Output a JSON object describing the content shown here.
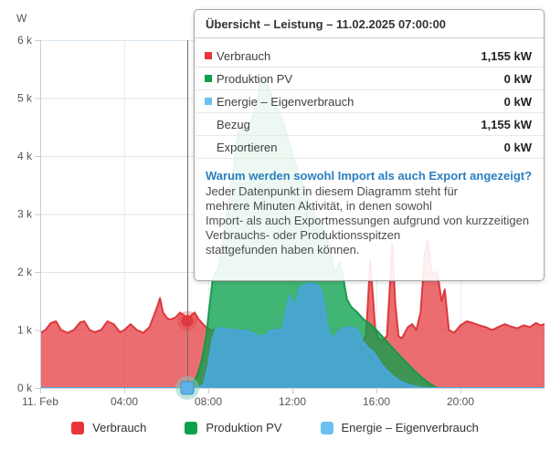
{
  "chart_data": {
    "type": "area",
    "title": "",
    "xlabel": "",
    "ylabel": "W",
    "y_axis": {
      "unit_label": "W",
      "min": 0,
      "max": 6000,
      "tick_step": 1000,
      "tick_labels": [
        "0 k",
        "1 k",
        "2 k",
        "3 k",
        "4 k",
        "5 k",
        "6 k"
      ]
    },
    "x_axis": {
      "ticks": [
        {
          "t": 0,
          "label": "11. Feb"
        },
        {
          "t": 4,
          "label": "04:00"
        },
        {
          "t": 8,
          "label": "08:00"
        },
        {
          "t": 12,
          "label": "12:00"
        },
        {
          "t": 16,
          "label": "16:00"
        },
        {
          "t": 20,
          "label": "20:00"
        }
      ]
    },
    "grid": true,
    "legend_position": "bottom",
    "series": [
      {
        "name": "Verbrauch",
        "color": "#e8353a",
        "stroke": "rgba(218,44,49,0.9)",
        "fill": "rgba(229,53,57,0.72)",
        "points": [
          [
            0,
            950
          ],
          [
            0.25,
            1000
          ],
          [
            0.5,
            1120
          ],
          [
            0.75,
            1150
          ],
          [
            1,
            1000
          ],
          [
            1.3,
            950
          ],
          [
            1.6,
            1000
          ],
          [
            1.9,
            1130
          ],
          [
            2.1,
            1150
          ],
          [
            2.35,
            1000
          ],
          [
            2.6,
            960
          ],
          [
            2.9,
            1000
          ],
          [
            3.2,
            1150
          ],
          [
            3.5,
            1100
          ],
          [
            3.8,
            960
          ],
          [
            4,
            1000
          ],
          [
            4.3,
            1100
          ],
          [
            4.6,
            1000
          ],
          [
            4.9,
            950
          ],
          [
            5.2,
            1050
          ],
          [
            5.55,
            1380
          ],
          [
            5.7,
            1550
          ],
          [
            5.85,
            1300
          ],
          [
            6.05,
            1200
          ],
          [
            6.2,
            1180
          ],
          [
            6.45,
            1220
          ],
          [
            6.65,
            1300
          ],
          [
            6.85,
            1250
          ],
          [
            7,
            1155
          ],
          [
            7.2,
            1260
          ],
          [
            7.35,
            1300
          ],
          [
            7.55,
            1180
          ],
          [
            7.75,
            1100
          ],
          [
            7.95,
            1030
          ],
          [
            8.15,
            1000
          ],
          [
            8.35,
            1000
          ],
          [
            8.6,
            1040
          ],
          [
            8.9,
            1000
          ],
          [
            9.2,
            1010
          ],
          [
            9.5,
            980
          ],
          [
            9.8,
            1000
          ],
          [
            10.1,
            950
          ],
          [
            10.4,
            890
          ],
          [
            10.7,
            910
          ],
          [
            11,
            1000
          ],
          [
            11.3,
            990
          ],
          [
            11.55,
            1040
          ],
          [
            11.85,
            1600
          ],
          [
            12.05,
            1430
          ],
          [
            12.2,
            1500
          ],
          [
            12.35,
            1720
          ],
          [
            12.55,
            1780
          ],
          [
            12.85,
            1800
          ],
          [
            13.15,
            1790
          ],
          [
            13.35,
            1700
          ],
          [
            13.5,
            1480
          ],
          [
            13.65,
            1100
          ],
          [
            13.8,
            900
          ],
          [
            13.95,
            870
          ],
          [
            14.15,
            950
          ],
          [
            14.35,
            1020
          ],
          [
            14.65,
            1050
          ],
          [
            14.95,
            1030
          ],
          [
            15.15,
            980
          ],
          [
            15.35,
            800
          ],
          [
            15.5,
            900
          ],
          [
            15.6,
            1500
          ],
          [
            15.7,
            2200
          ],
          [
            15.85,
            1500
          ],
          [
            15.95,
            1000
          ],
          [
            16.1,
            850
          ],
          [
            16.3,
            820
          ],
          [
            16.5,
            900
          ],
          [
            16.65,
            1800
          ],
          [
            16.75,
            2500
          ],
          [
            16.9,
            1450
          ],
          [
            17.05,
            900
          ],
          [
            17.2,
            850
          ],
          [
            17.5,
            1050
          ],
          [
            17.7,
            1100
          ],
          [
            17.9,
            1000
          ],
          [
            18.1,
            1300
          ],
          [
            18.3,
            2300
          ],
          [
            18.45,
            2550
          ],
          [
            18.6,
            2050
          ],
          [
            18.75,
            1950
          ],
          [
            18.9,
            2000
          ],
          [
            19.1,
            1500
          ],
          [
            19.25,
            1700
          ],
          [
            19.45,
            1000
          ],
          [
            19.7,
            950
          ],
          [
            20,
            1080
          ],
          [
            20.3,
            1150
          ],
          [
            20.6,
            1120
          ],
          [
            20.9,
            1080
          ],
          [
            21.2,
            1050
          ],
          [
            21.5,
            1000
          ],
          [
            21.8,
            1050
          ],
          [
            22.1,
            1100
          ],
          [
            22.4,
            1060
          ],
          [
            22.7,
            1030
          ],
          [
            23,
            1080
          ],
          [
            23.3,
            1050
          ],
          [
            23.6,
            1120
          ],
          [
            23.8,
            1080
          ],
          [
            24,
            1100
          ]
        ]
      },
      {
        "name": "Produktion PV",
        "color": "#0ba04c",
        "stroke": "rgba(17,150,74,0.9)",
        "fill": "rgba(11,160,76,0.78)",
        "points": [
          [
            7.05,
            0
          ],
          [
            7.3,
            100
          ],
          [
            7.5,
            250
          ],
          [
            7.7,
            500
          ],
          [
            7.9,
            900
          ],
          [
            8.05,
            1400
          ],
          [
            8.2,
            1850
          ],
          [
            8.3,
            1950
          ],
          [
            8.45,
            2050
          ],
          [
            8.6,
            2350
          ],
          [
            8.8,
            2800
          ],
          [
            9,
            3300
          ],
          [
            9.2,
            3750
          ],
          [
            9.35,
            4250
          ],
          [
            9.5,
            4520
          ],
          [
            9.7,
            4480
          ],
          [
            9.9,
            4530
          ],
          [
            10.1,
            4650
          ],
          [
            10.3,
            4950
          ],
          [
            10.5,
            5250
          ],
          [
            10.65,
            5350
          ],
          [
            10.8,
            5250
          ],
          [
            11,
            5050
          ],
          [
            11.3,
            4800
          ],
          [
            11.6,
            4550
          ],
          [
            11.9,
            4150
          ],
          [
            12.2,
            3800
          ],
          [
            12.5,
            3500
          ],
          [
            12.8,
            3200
          ],
          [
            13.1,
            2950
          ],
          [
            13.4,
            2800
          ],
          [
            13.6,
            2600
          ],
          [
            13.8,
            2400
          ],
          [
            14,
            1980
          ],
          [
            14.25,
            2170
          ],
          [
            14.45,
            1850
          ],
          [
            14.6,
            1530
          ],
          [
            14.8,
            1400
          ],
          [
            15.1,
            1300
          ],
          [
            15.4,
            1180
          ],
          [
            15.7,
            1100
          ],
          [
            16,
            1000
          ],
          [
            16.3,
            880
          ],
          [
            16.6,
            760
          ],
          [
            17,
            600
          ],
          [
            17.4,
            450
          ],
          [
            17.8,
            300
          ],
          [
            18.2,
            170
          ],
          [
            18.6,
            60
          ],
          [
            18.9,
            0
          ]
        ]
      },
      {
        "name": "Energie – Eigenverbrauch",
        "color": "#6cc0f0",
        "stroke": "rgba(74,166,224,0.95)",
        "fill": "rgba(74,169,226,0.85)",
        "points": [
          [
            0,
            0
          ],
          [
            7.55,
            0
          ],
          [
            7.8,
            80
          ],
          [
            8,
            400
          ],
          [
            8.2,
            850
          ],
          [
            8.35,
            1000
          ],
          [
            8.6,
            1040
          ],
          [
            8.9,
            1000
          ],
          [
            9.2,
            1010
          ],
          [
            9.5,
            980
          ],
          [
            9.8,
            1000
          ],
          [
            10.1,
            950
          ],
          [
            10.4,
            890
          ],
          [
            10.7,
            910
          ],
          [
            11,
            1000
          ],
          [
            11.3,
            990
          ],
          [
            11.55,
            1040
          ],
          [
            11.85,
            1600
          ],
          [
            12.05,
            1430
          ],
          [
            12.2,
            1500
          ],
          [
            12.35,
            1720
          ],
          [
            12.55,
            1780
          ],
          [
            12.85,
            1800
          ],
          [
            13.15,
            1790
          ],
          [
            13.35,
            1700
          ],
          [
            13.5,
            1480
          ],
          [
            13.65,
            1100
          ],
          [
            13.8,
            900
          ],
          [
            13.95,
            870
          ],
          [
            14.15,
            950
          ],
          [
            14.35,
            1020
          ],
          [
            14.65,
            1050
          ],
          [
            14.95,
            1030
          ],
          [
            15.15,
            980
          ],
          [
            15.35,
            800
          ],
          [
            15.6,
            700
          ],
          [
            15.9,
            600
          ],
          [
            16.2,
            430
          ],
          [
            16.5,
            300
          ],
          [
            16.8,
            200
          ],
          [
            17.1,
            120
          ],
          [
            17.5,
            60
          ],
          [
            17.9,
            20
          ],
          [
            18.3,
            0
          ],
          [
            24,
            0
          ]
        ]
      }
    ],
    "selection": {
      "time": "07:00",
      "t": 7,
      "crosshair_color": "#6b6b6b",
      "markers": [
        {
          "shape": "circle",
          "t": 7,
          "value": 1155,
          "fill": "#dc3a3f",
          "halo": "rgba(229,53,57,0.3)"
        },
        {
          "shape": "square",
          "t": 7,
          "value": 0,
          "fill": "#5fb2e5",
          "edge": "#3f92c9",
          "halo": "rgba(125,205,185,0.5)"
        }
      ]
    }
  },
  "tooltip": {
    "title": "Übersicht – Leistung – 11.02.2025 07:00:00",
    "rows": [
      {
        "label": "Verbrauch",
        "value": "1,155 kW",
        "bullet": "#e8353a"
      },
      {
        "label": "Produktion PV",
        "value": "0 kW",
        "bullet": "#0ba04c"
      },
      {
        "label": "Energie – Eigenverbrauch",
        "value": "0 kW",
        "bullet": "#6cc0f0"
      },
      {
        "label": "Bezug",
        "value": "1,155 kW"
      },
      {
        "label": "Exportieren",
        "value": "0 kW"
      }
    ],
    "link": "Warum werden sowohl Import als auch Export angezeigt?",
    "lines": [
      "Jeder Datenpunkt in diesem Diagramm steht für",
      "mehrere Minuten Aktivität, in denen sowohl",
      "Import- als auch Exportmessungen aufgrund von kurzzeitigen",
      "Verbrauchs- oder Produktionsspitzen",
      "stattgefunden haben können."
    ]
  },
  "legend": {
    "items": [
      {
        "label": "Verbrauch",
        "color": "#e8353a"
      },
      {
        "label": "Produktion PV",
        "color": "#0ba04c"
      },
      {
        "label": "Energie – Eigenverbrauch",
        "color": "#6cc0f0"
      }
    ]
  }
}
